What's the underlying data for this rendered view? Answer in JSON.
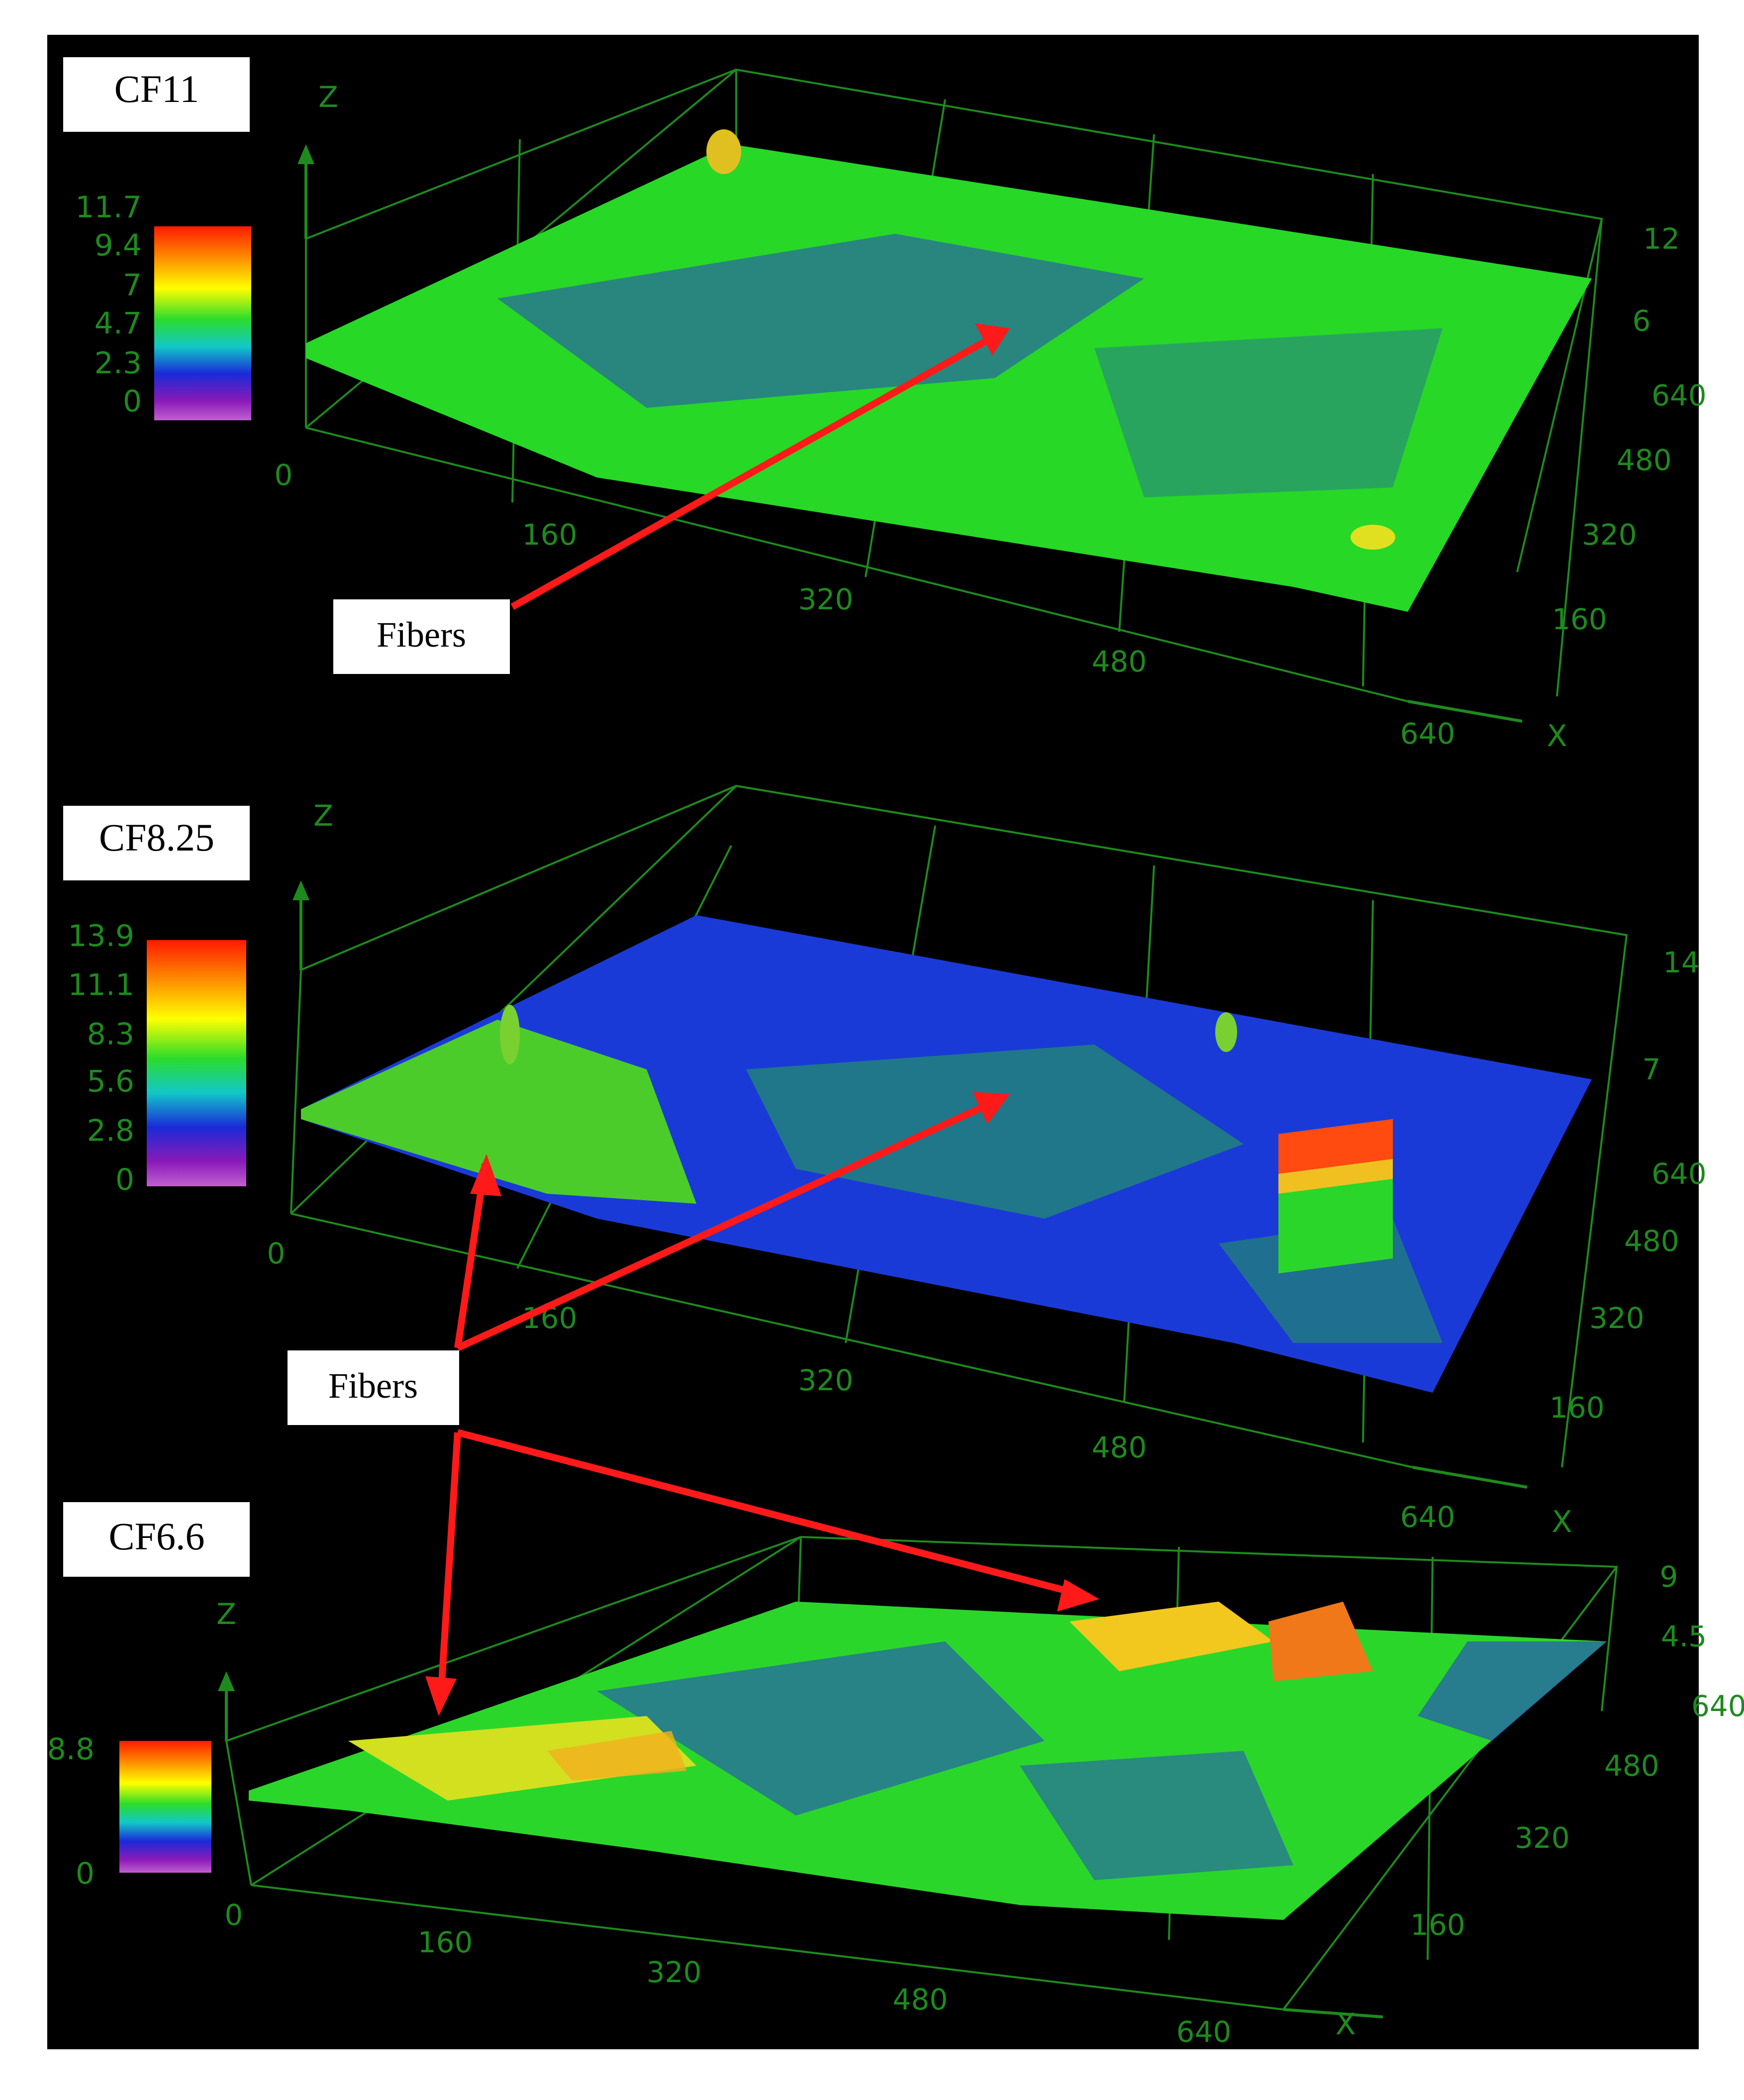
{
  "chart_data": [
    {
      "type": "surface",
      "title": "CF11",
      "colorbar": {
        "ticks": [
          "11.7",
          "9.4",
          "7",
          "4.7",
          "2.3",
          "0"
        ],
        "max": 11.7,
        "min": 0
      },
      "x_ticks": [
        "0",
        "160",
        "320",
        "480",
        "640"
      ],
      "y_ticks": [
        "640",
        "480",
        "320",
        "160"
      ],
      "z_ticks": [
        "12",
        "6"
      ],
      "axis_labels": {
        "x": "X",
        "z": "Z"
      },
      "x_range": [
        0,
        640
      ],
      "y_range": [
        0,
        640
      ],
      "z_range": [
        0,
        12
      ],
      "dominant_color": "green",
      "surface_colors": [
        "#1fd21f",
        "#3de62a",
        "#2a3dc8",
        "#c8e21f"
      ],
      "annotation": "Fibers"
    },
    {
      "type": "surface",
      "title": "CF8.25",
      "colorbar": {
        "ticks": [
          "13.9",
          "11.1",
          "8.3",
          "5.6",
          "2.8",
          "0"
        ],
        "max": 13.9,
        "min": 0
      },
      "x_ticks": [
        "0",
        "160",
        "320",
        "480",
        "640"
      ],
      "y_ticks": [
        "640",
        "480",
        "320",
        "160"
      ],
      "z_ticks": [
        "14",
        "7"
      ],
      "axis_labels": {
        "x": "X",
        "z": "Z"
      },
      "x_range": [
        0,
        640
      ],
      "y_range": [
        0,
        640
      ],
      "z_range": [
        0,
        14
      ],
      "dominant_color": "blue",
      "surface_colors": [
        "#1a3ad8",
        "#2355e0",
        "#25b43a",
        "#6ad21e"
      ],
      "annotation": "Fibers"
    },
    {
      "type": "surface",
      "title": "CF6.6",
      "colorbar": {
        "ticks": [
          "8.8",
          "0"
        ],
        "max": 8.8,
        "min": 0
      },
      "x_ticks": [
        "0",
        "160",
        "320",
        "480",
        "640"
      ],
      "y_ticks": [
        "640",
        "480",
        "320",
        "160"
      ],
      "z_ticks": [
        "9",
        "4.5"
      ],
      "axis_labels": {
        "x": "X",
        "z": "Z"
      },
      "x_range": [
        0,
        640
      ],
      "y_range": [
        0,
        640
      ],
      "z_range": [
        0,
        9
      ],
      "dominant_color": "green-yellow",
      "surface_colors": [
        "#2bd62b",
        "#8fe01f",
        "#f2d21e",
        "#2540d0"
      ]
    }
  ],
  "colors": {
    "background": "#000000",
    "axis": "#1e8a1e",
    "arrow": "#ff1a1a",
    "label_box": "#ffffff"
  },
  "shared_annotation": "Fibers"
}
